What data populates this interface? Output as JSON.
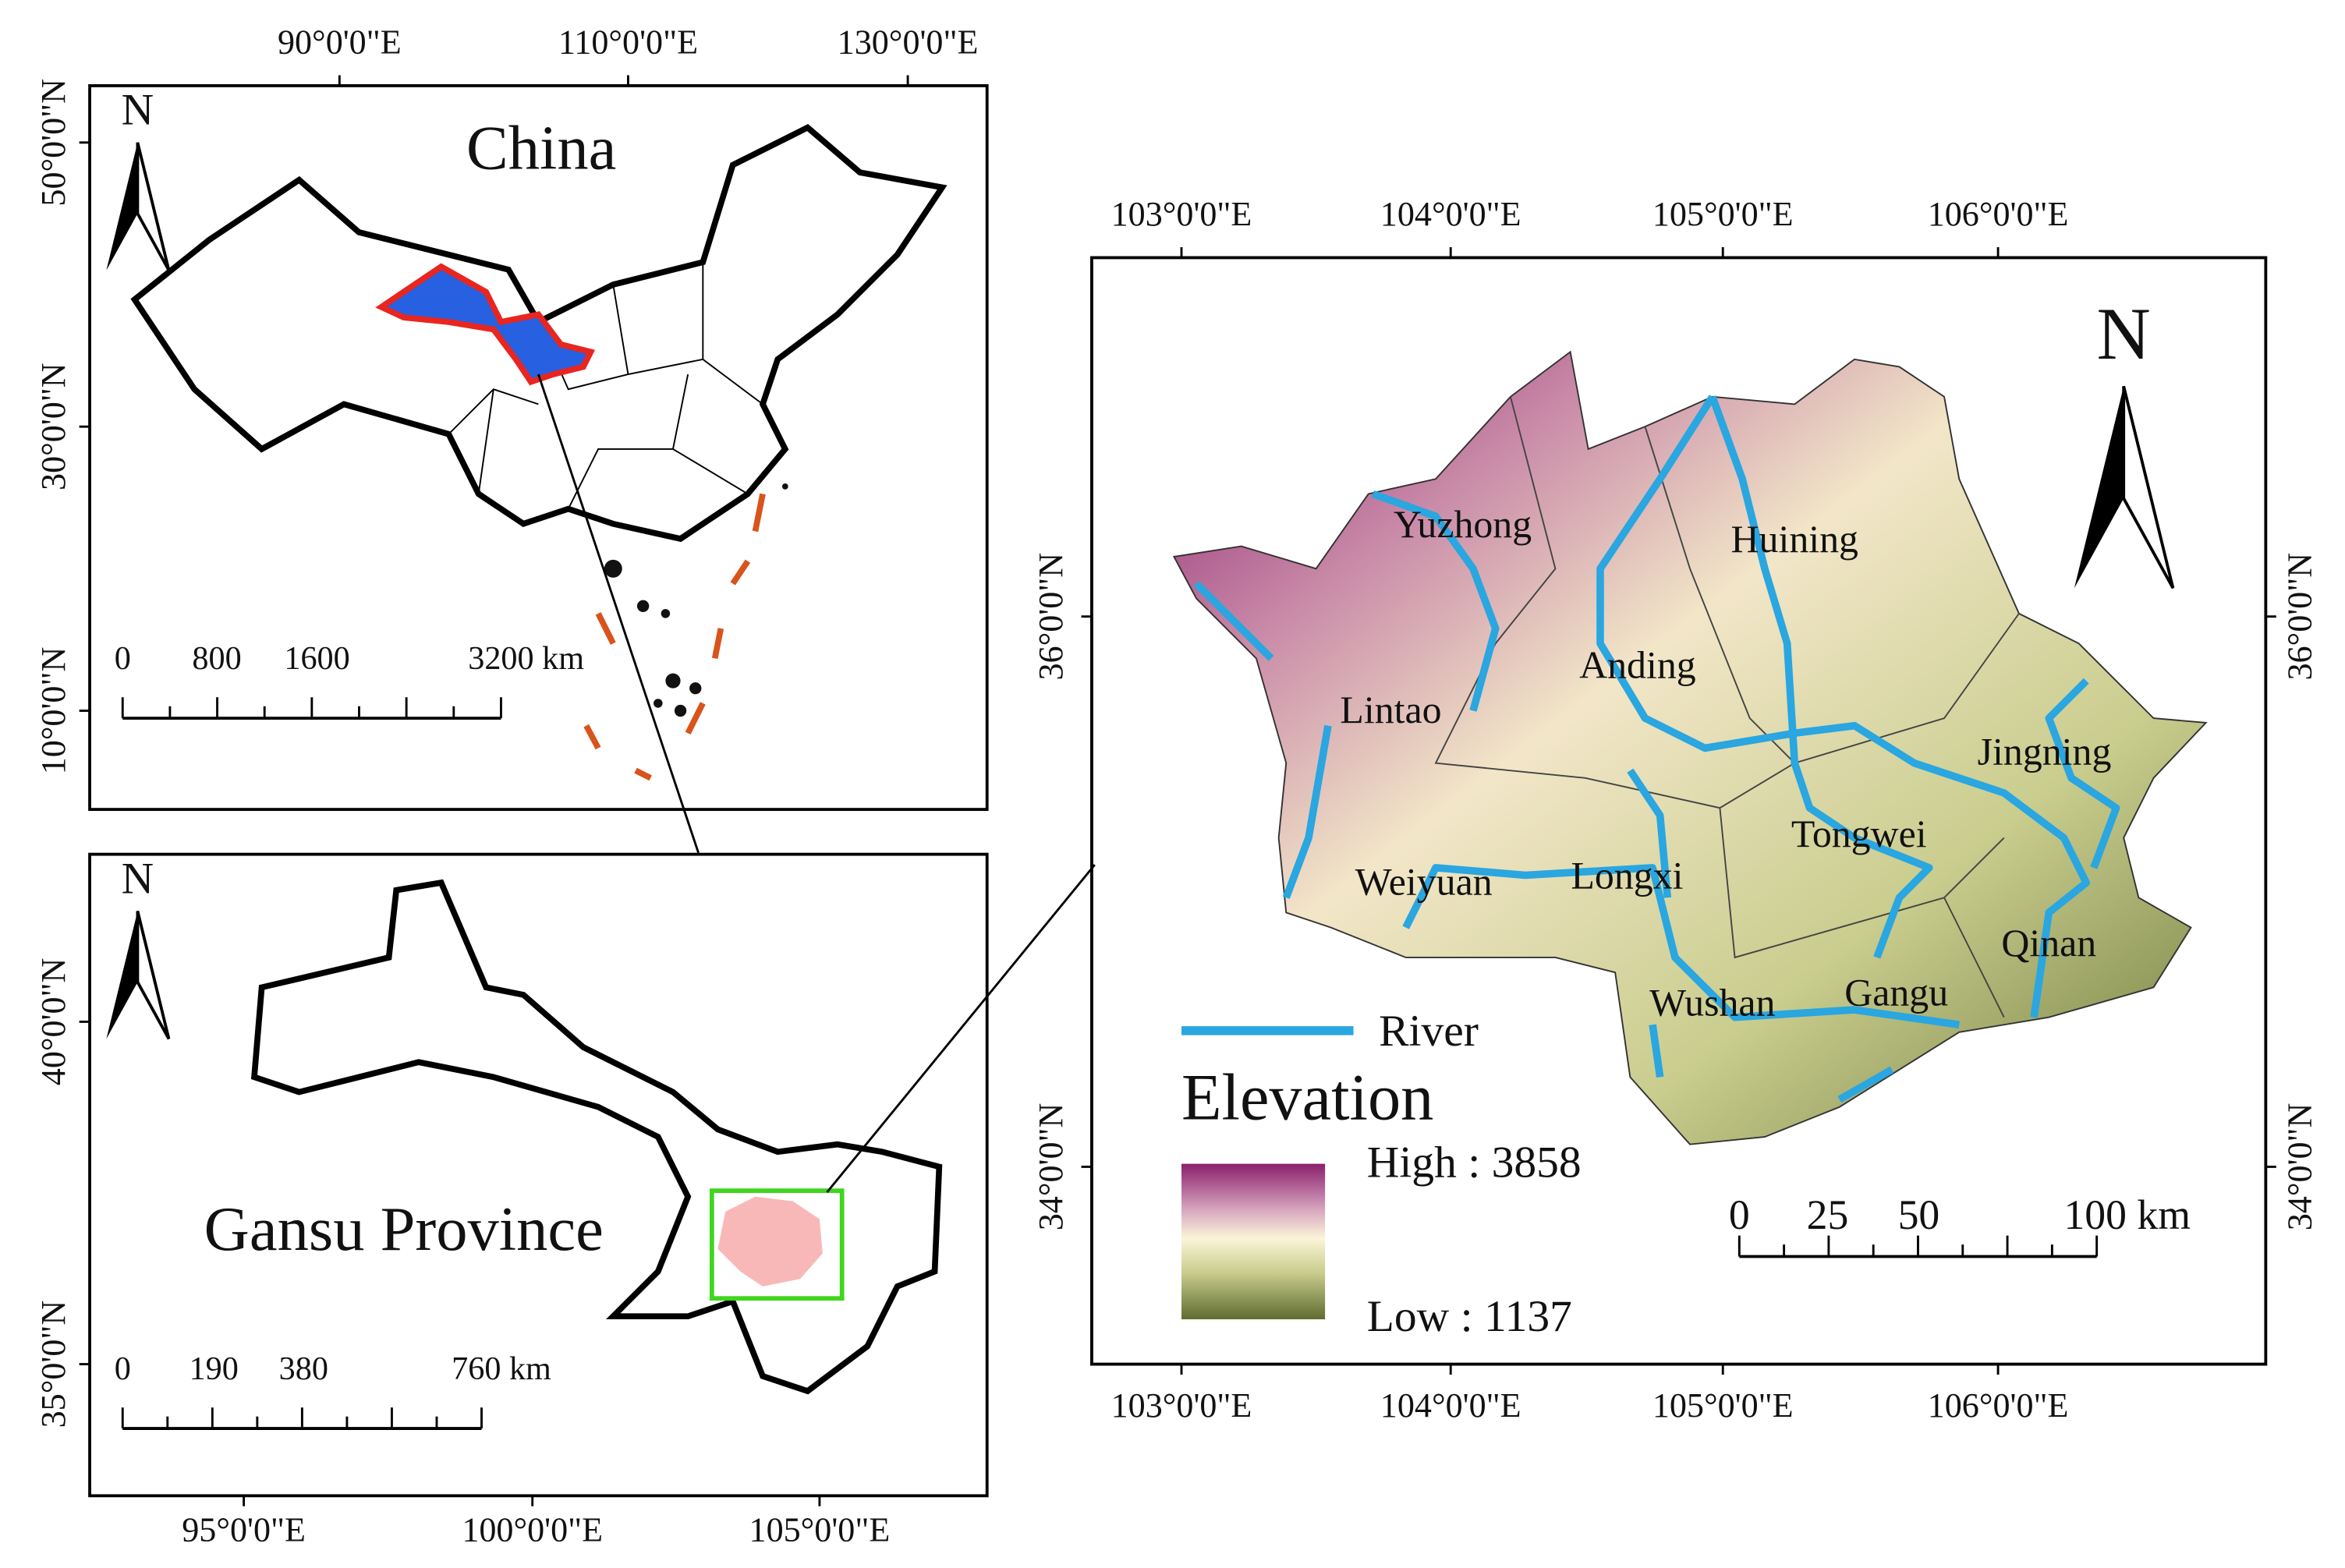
{
  "china_panel": {
    "title": "China",
    "north": "N",
    "x_ticks": [
      "90°0'0\"E",
      "110°0'0\"E",
      "130°0'0\"E"
    ],
    "y_ticks": [
      "50°0'0\"N",
      "30°0'0\"N",
      "10°0'0\"N"
    ],
    "scale_bar": [
      "0",
      "800",
      "1600",
      "3200 km"
    ]
  },
  "gansu_panel": {
    "title": "Gansu Province",
    "north": "N",
    "x_ticks": [
      "95°0'0\"E",
      "100°0'0\"E",
      "105°0'0\"E"
    ],
    "y_ticks": [
      "40°0'0\"N",
      "35°0'0\"N"
    ],
    "scale_bar": [
      "0",
      "190",
      "380",
      "760 km"
    ]
  },
  "study_panel": {
    "north": "N",
    "x_ticks": [
      "103°0'0\"E",
      "104°0'0\"E",
      "105°0'0\"E",
      "106°0'0\"E"
    ],
    "y_ticks": [
      "36°0'0\"N",
      "34°0'0\"N"
    ],
    "counties": [
      "Yuzhong",
      "Huining",
      "Anding",
      "Lintao",
      "Jingning",
      "Tongwei",
      "Weiyuan",
      "Longxi",
      "Qinan",
      "Wushan",
      "Gangu"
    ],
    "legend": {
      "river": "River",
      "elevation_title": "Elevation",
      "high": "High : 3858",
      "low": "Low : 1137"
    },
    "scale_bar": [
      "0",
      "25",
      "50",
      "100 km"
    ]
  }
}
